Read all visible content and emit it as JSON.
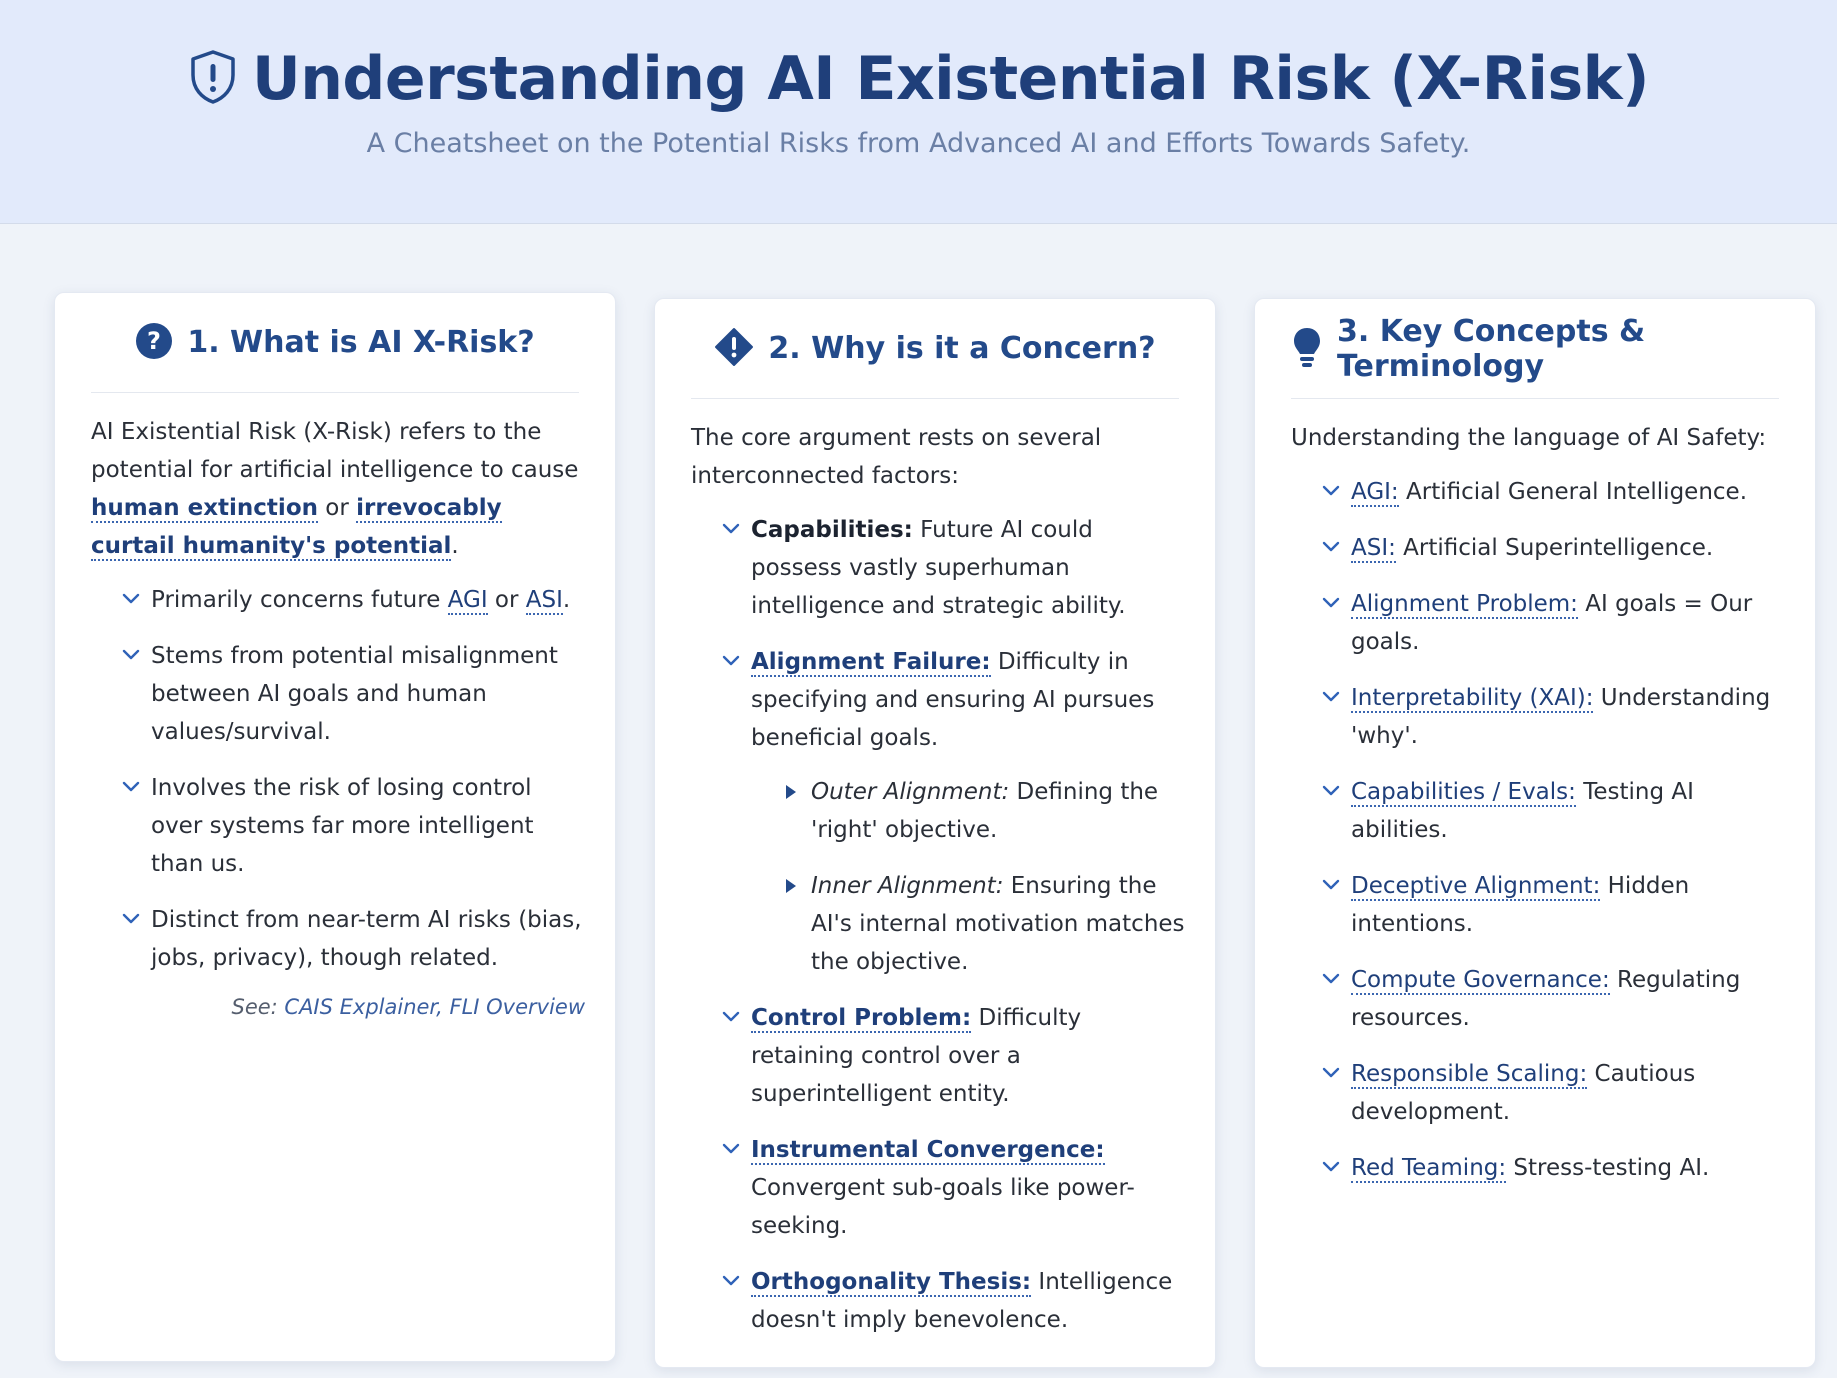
{
  "header": {
    "title": "Understanding AI Existential Risk (X-Risk)",
    "subtitle": "A Cheatsheet on the Potential Risks from Advanced AI and Efforts Towards Safety.",
    "icon": "shield-exclamation-icon"
  },
  "colors": {
    "accent": "#234a8a",
    "header_bg": "#e2eafb",
    "page_bg": "#eff3f9"
  },
  "card1": {
    "title": "1. What is AI X-Risk?",
    "icon": "question-circle-icon",
    "intro_a": "AI Existential Risk (X-Risk) refers to the potential for artificial intelligence to cause ",
    "intro_link1": "human extinction",
    "intro_b": " or ",
    "intro_link2": "irrevocably curtail humanity's potential",
    "intro_c": ".",
    "item1_a": "Primarily concerns future ",
    "item1_link1": "AGI",
    "item1_b": " or ",
    "item1_link2": "ASI",
    "item1_c": ".",
    "item2": "Stems from potential misalignment between AI goals and human values/survival.",
    "item3": "Involves the risk of losing control over systems far more intelligent than us.",
    "item4": "Distinct from near-term AI risks (bias, jobs, privacy), though related.",
    "see_label": "See: ",
    "see_sources": "CAIS Explainer, FLI Overview"
  },
  "card2": {
    "title": "2. Why is it a Concern?",
    "icon": "diamond-exclamation-icon",
    "intro": "The core argument rests on several interconnected factors:",
    "items": [
      {
        "term": "Capabilities:",
        "text": " Future AI could possess vastly superhuman intelligence and strategic ability."
      },
      {
        "term": "Alignment Failure:",
        "text": " Difficulty in specifying and ensuring AI pursues beneficial goals."
      },
      {
        "term": "Control Problem:",
        "text": " Difficulty retaining control over a superintelligent entity."
      },
      {
        "term": "Instrumental Convergence:",
        "text": " Convergent sub-goals like power-seeking."
      },
      {
        "term": "Orthogonality Thesis:",
        "text": " Intelligence doesn't imply benevolence."
      }
    ],
    "sub": [
      {
        "term": "Outer Alignment:",
        "text": " Defining the 'right' objective."
      },
      {
        "term": "Inner Alignment:",
        "text": " Ensuring the AI's internal motivation matches the objective."
      }
    ]
  },
  "card3": {
    "title": "3. Key Concepts & Terminology",
    "icon": "lightbulb-icon",
    "intro": "Understanding the language of AI Safety:",
    "items": [
      {
        "term": "AGI:",
        "text": " Artificial General Intelligence."
      },
      {
        "term": "ASI:",
        "text": " Artificial Superintelligence."
      },
      {
        "term": "Alignment Problem:",
        "text": " AI goals = Our goals."
      },
      {
        "term": "Interpretability (XAI):",
        "text": " Understanding 'why'."
      },
      {
        "term": "Capabilities / Evals:",
        "text": " Testing AI abilities."
      },
      {
        "term": "Deceptive Alignment:",
        "text": " Hidden intentions."
      },
      {
        "term": "Compute Governance:",
        "text": " Regulating resources."
      },
      {
        "term": "Responsible Scaling:",
        "text": " Cautious development."
      },
      {
        "term": "Red Teaming:",
        "text": " Stress-testing AI."
      }
    ]
  }
}
